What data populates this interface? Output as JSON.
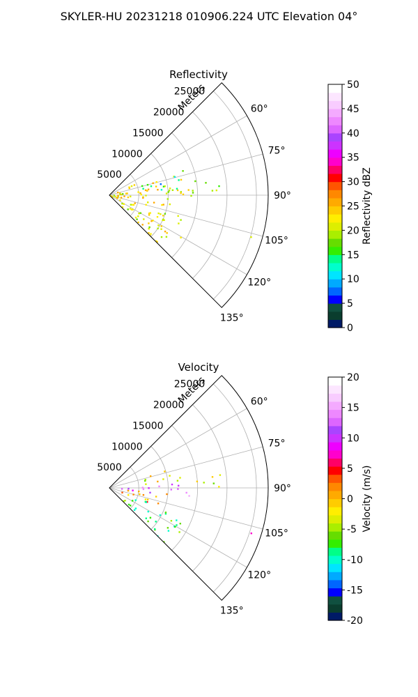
{
  "suptitle": "SKYLER-HU  20231218  010906.224 UTC Elevation 04°",
  "panels": [
    {
      "title": "Reflectivity",
      "range_label": "Meters",
      "range_ticks": [
        "5000",
        "10000",
        "15000",
        "20000",
        "25000"
      ],
      "azimuth_ticks": [
        "60°",
        "75°",
        "90°",
        "105°",
        "120°",
        "135°"
      ],
      "colorbar": {
        "label": "Reflectivity dBZ",
        "ticks": [
          "0",
          "5",
          "10",
          "15",
          "20",
          "25",
          "30",
          "35",
          "40",
          "45",
          "50"
        ],
        "colors": [
          "#001a66",
          "#0a3d2e",
          "#105040",
          "#0000ff",
          "#0066ff",
          "#00aaff",
          "#00e5ff",
          "#00ffcc",
          "#00ff88",
          "#33ee00",
          "#66dd00",
          "#aaee00",
          "#ddee00",
          "#ffee00",
          "#ffcc00",
          "#ffaa00",
          "#ff8800",
          "#ff5500",
          "#ff0000",
          "#ff0066",
          "#ff00cc",
          "#ee00ff",
          "#cc33ff",
          "#aa44ff",
          "#dd66ff",
          "#ee88ff",
          "#f4aaff",
          "#f8ccff",
          "#fce6ff",
          "#ffffff"
        ]
      }
    },
    {
      "title": "Velocity",
      "range_label": "Meters",
      "range_ticks": [
        "5000",
        "10000",
        "15000",
        "20000",
        "25000"
      ],
      "azimuth_ticks": [
        "60°",
        "75°",
        "90°",
        "105°",
        "120°",
        "135°"
      ],
      "colorbar": {
        "label": "Velocity (m/s)",
        "ticks": [
          "-20",
          "-15",
          "-10",
          "-5",
          "0",
          "5",
          "10",
          "15",
          "20"
        ],
        "colors": [
          "#001a66",
          "#0a3d2e",
          "#105040",
          "#0000ff",
          "#0066ff",
          "#00aaff",
          "#00e5ff",
          "#00ffcc",
          "#00ff88",
          "#33ee00",
          "#66dd00",
          "#aaee00",
          "#ddee00",
          "#ffee00",
          "#ffcc00",
          "#ffaa00",
          "#ff8800",
          "#ff5500",
          "#ff0000",
          "#ff0066",
          "#ff00cc",
          "#ee00ff",
          "#cc33ff",
          "#aa44ff",
          "#dd66ff",
          "#ee88ff",
          "#f4aaff",
          "#f8ccff",
          "#fce6ff",
          "#ffffff"
        ]
      }
    }
  ],
  "chart_data": [
    {
      "type": "heatmap",
      "projection": "polar sector (PPI)",
      "title": "Reflectivity",
      "range_axis_label": "Meters",
      "range_ticks": [
        5000,
        10000,
        15000,
        20000,
        25000
      ],
      "rlim": [
        0,
        27000
      ],
      "azimuth_ticks_deg": [
        60,
        75,
        90,
        105,
        120,
        135
      ],
      "azimuth_range_deg": [
        45,
        135
      ],
      "colorbar_label": "Reflectivity dBZ",
      "clim": [
        0,
        50
      ],
      "grid": true,
      "echo_regions": [
        {
          "az_deg": [
            65,
            135
          ],
          "range_m": [
            0,
            14000
          ],
          "level": 22
        },
        {
          "az_deg": [
            72,
            84
          ],
          "range_m": [
            5500,
            13000
          ],
          "level": 12
        },
        {
          "az_deg": [
            84,
            92
          ],
          "range_m": [
            9000,
            15000
          ],
          "level": 22
        },
        {
          "az_deg": [
            80,
            90
          ],
          "range_m": [
            14000,
            19000
          ],
          "level": 20
        },
        {
          "az_deg": [
            105,
            109
          ],
          "range_m": [
            24000,
            26500
          ],
          "level": 22
        }
      ]
    },
    {
      "type": "heatmap",
      "projection": "polar sector (PPI)",
      "title": "Velocity",
      "range_axis_label": "Meters",
      "range_ticks": [
        5000,
        10000,
        15000,
        20000,
        25000
      ],
      "rlim": [
        0,
        27000
      ],
      "azimuth_ticks_deg": [
        60,
        75,
        90,
        105,
        120,
        135
      ],
      "azimuth_range_deg": [
        45,
        135
      ],
      "colorbar_label": "Velocity (m/s)",
      "clim": [
        -20,
        20
      ],
      "grid": true,
      "echo_regions": [
        {
          "az_deg": [
            72,
            84
          ],
          "range_m": [
            5500,
            13000
          ],
          "level": -3
        },
        {
          "az_deg": [
            86,
            96
          ],
          "range_m": [
            0,
            14000
          ],
          "level": 12
        },
        {
          "az_deg": [
            95,
            110
          ],
          "range_m": [
            2000,
            10000
          ],
          "level": 2
        },
        {
          "az_deg": [
            110,
            135
          ],
          "range_m": [
            3000,
            14000
          ],
          "level": -8
        },
        {
          "az_deg": [
            80,
            90
          ],
          "range_m": [
            14000,
            19000
          ],
          "level": -4
        },
        {
          "az_deg": [
            105,
            109
          ],
          "range_m": [
            24000,
            26500
          ],
          "level": 8
        }
      ]
    }
  ]
}
